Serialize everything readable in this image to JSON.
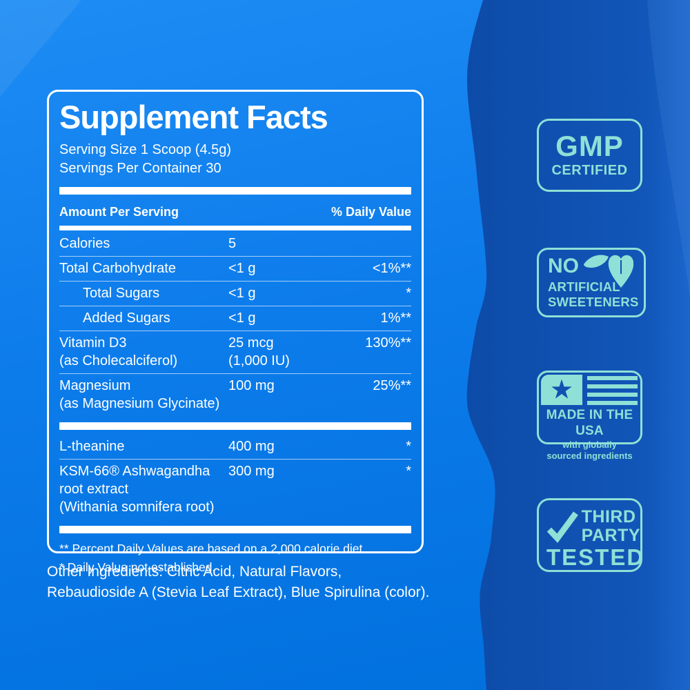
{
  "colors": {
    "bright_blue_top": "#1d8cf4",
    "bright_blue_bottom": "#0070dd",
    "dark_blue": "#0F51B2",
    "dark_blue_edge": "#1B66CC",
    "badge_teal": "#8FE0D6",
    "panel_text": "#FFFFFF"
  },
  "panel": {
    "title": "Supplement Facts",
    "serving_size": "Serving Size 1 Scoop (4.5g)",
    "servings_per_container": "Servings Per Container 30",
    "columns": {
      "amount_header": "Amount Per Serving",
      "dv_header": "% Daily Value"
    },
    "rows": [
      {
        "type": "row",
        "name": "Calories",
        "amount": "5",
        "dv": ""
      },
      {
        "type": "row",
        "name": "Total Carbohydrate",
        "amount": "<1 g",
        "dv": "<1%**"
      },
      {
        "type": "row",
        "name": "Total Sugars",
        "amount": "<1 g",
        "dv": "*",
        "indent": true
      },
      {
        "type": "row",
        "name": "Added Sugars",
        "amount": "<1 g",
        "dv": "1%**",
        "indent": true
      },
      {
        "type": "row",
        "name": "Vitamin D3",
        "sub": "(as Cholecalciferol)",
        "amount": "25 mcg",
        "amount2": "(1,000 IU)",
        "dv": "130%**"
      },
      {
        "type": "row",
        "name": "Magnesium",
        "sub": "(as Magnesium Glycinate)",
        "amount": "100 mg",
        "dv": "25%**",
        "sep": false
      },
      {
        "type": "bar"
      },
      {
        "type": "row",
        "name": "L-theanine",
        "amount": "400 mg",
        "dv": "*"
      },
      {
        "type": "row",
        "name": "KSM-66® Ashwagandha",
        "sub": "root extract\n(Withania somnifera root)",
        "amount": "300 mg",
        "dv": "*",
        "sep": false
      },
      {
        "type": "bar"
      }
    ],
    "footnotes": [
      "** Percent Daily Values are based on a 2,000 calorie diet.",
      "* Daily Value not established."
    ]
  },
  "other_ingredients": {
    "line1": "Other Ingredients: Citric Acid, Natural Flavors,",
    "line2": "Rebaudioside A (Stevia Leaf Extract), Blue Spirulina (color)."
  },
  "badges": {
    "gmp": {
      "title": "GMP",
      "subtitle": "CERTIFIED"
    },
    "no_artificial": {
      "icon": "stevia-leaves-icon",
      "line1": "NO",
      "line2": "ARTIFICIAL",
      "line3": "SWEETENERS"
    },
    "made_usa": {
      "icon": "us-flag-icon",
      "star": "★",
      "title": "MADE IN THE USA",
      "sub1": "with globally",
      "sub2": "sourced ingredients"
    },
    "third_party": {
      "icon": "checkmark-icon",
      "word1": "THIRD",
      "word2": "PARTY",
      "word3": "TESTED"
    }
  }
}
